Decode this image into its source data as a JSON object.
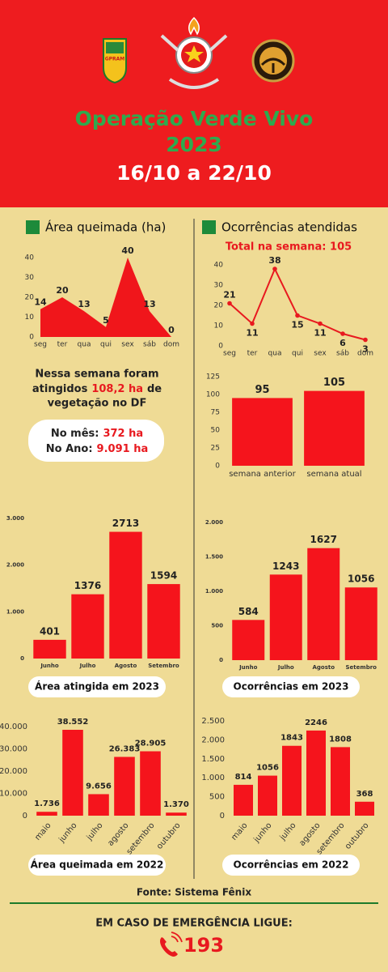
{
  "header": {
    "title": "Operação Verde Vivo",
    "year": "2023",
    "dates": "16/10 a 22/10",
    "logo_label": "GPRAM"
  },
  "summary": {
    "line1": "Nessa semana foram",
    "line2a": "atingidos",
    "highlight": "108,2 ha",
    "line2b": "de",
    "line3": "vegetação no DF",
    "month_label": "No mês:",
    "month_value": "372 ha",
    "year_label": "No Ano:",
    "year_value": "9.091 ha"
  },
  "chart_data": [
    {
      "type": "area",
      "title": "Área queimada (ha)",
      "categories": [
        "seg",
        "ter",
        "qua",
        "qui",
        "sex",
        "sáb",
        "dom"
      ],
      "values": [
        14,
        20,
        13,
        5,
        40,
        13,
        0
      ],
      "color": "#f0161b",
      "ylim": [
        0,
        40
      ],
      "yticks": [
        0,
        10,
        20,
        30,
        40
      ],
      "grid": false
    },
    {
      "type": "line",
      "title": "Ocorrências atendidas",
      "subtitle": "Total na semana: 105",
      "categories": [
        "seg",
        "ter",
        "qua",
        "qui",
        "sex",
        "sáb",
        "dom"
      ],
      "values": [
        21,
        11,
        38,
        15,
        11,
        6,
        3
      ],
      "color": "#e8191f",
      "ylim": [
        0,
        40
      ],
      "yticks": [
        0,
        10,
        20,
        30,
        40
      ],
      "grid": false
    },
    {
      "type": "bar",
      "categories": [
        "semana anterior",
        "semana atual"
      ],
      "values": [
        95,
        105
      ],
      "color": "#f5141c",
      "ylim": [
        0,
        125
      ],
      "yticks": [
        0,
        25,
        50,
        75,
        100,
        125
      ],
      "grid": false
    },
    {
      "type": "bar",
      "title": "Área atingida em 2023",
      "categories": [
        "Junho",
        "Julho",
        "Agosto",
        "Setembro"
      ],
      "values": [
        401,
        1376,
        2713,
        1594
      ],
      "color": "#f5141c",
      "ylim": [
        0,
        3000
      ],
      "yticks": [
        0,
        {
          "value": 1000,
          "label": "1.000"
        },
        {
          "value": 2000,
          "label": "2.000"
        },
        {
          "value": 3000,
          "label": "3.000"
        }
      ],
      "grid": false
    },
    {
      "type": "bar",
      "title": "Ocorrências em 2023",
      "categories": [
        "Junho",
        "Julho",
        "Agosto",
        "Setembro"
      ],
      "values": [
        584,
        1243,
        1627,
        1056
      ],
      "color": "#f5141c",
      "ylim": [
        0,
        2000
      ],
      "yticks": [
        0,
        500,
        {
          "value": 1000,
          "label": "1.000"
        },
        {
          "value": 1500,
          "label": "1.500"
        },
        {
          "value": 2000,
          "label": "2.000"
        }
      ],
      "grid": false
    },
    {
      "type": "bar",
      "title": "Área queimada em 2022",
      "categories": [
        "maio",
        "junho",
        "julho",
        "agosto",
        "setembro",
        "outubro"
      ],
      "values": [
        1736,
        38552,
        9656,
        26383,
        28905,
        1370
      ],
      "value_labels": [
        "1.736",
        "38.552",
        "9.656",
        "26.383",
        "28.905",
        "1.370"
      ],
      "color": "#f5141c",
      "ylim": [
        0,
        40000
      ],
      "yticks": [
        0,
        {
          "value": 10000,
          "label": "10.000"
        },
        {
          "value": 20000,
          "label": "20.000"
        },
        {
          "value": 30000,
          "label": "30.000"
        },
        {
          "value": 40000,
          "label": "40.000"
        }
      ],
      "grid": false
    },
    {
      "type": "bar",
      "title": "Ocorrências em 2022",
      "categories": [
        "maio",
        "junho",
        "julho",
        "agosto",
        "setembro",
        "outubro"
      ],
      "values": [
        814,
        1056,
        1843,
        2246,
        1808,
        368
      ],
      "color": "#f5141c",
      "ylim": [
        0,
        2500
      ],
      "yticks": [
        0,
        500,
        {
          "value": 1000,
          "label": "1.000"
        },
        {
          "value": 1500,
          "label": "1.500"
        },
        {
          "value": 2000,
          "label": "2.000"
        },
        {
          "value": 2500,
          "label": "2.500"
        }
      ],
      "grid": false
    }
  ],
  "footer": {
    "source": "Fonte: Sistema Fênix",
    "emergency": "EM CASO DE EMERGÊNCIA LIGUE:",
    "phone": "193"
  }
}
